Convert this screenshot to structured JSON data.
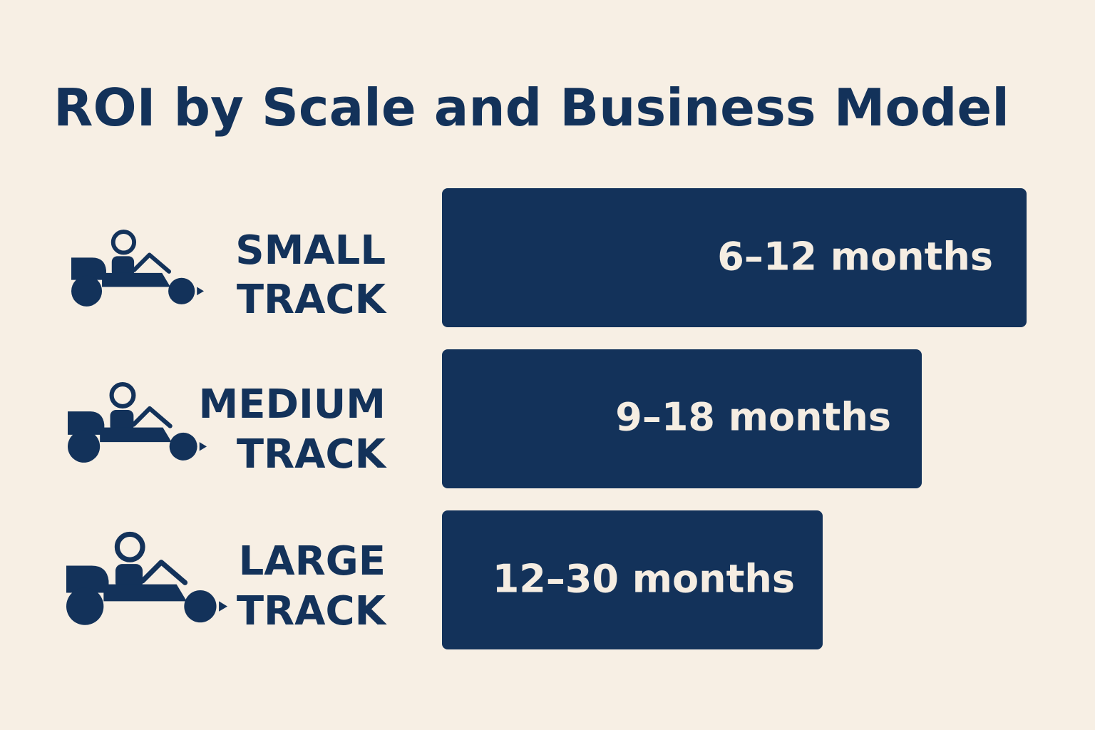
{
  "header": {
    "title": "ROI by Scale and Business Model"
  },
  "rows": [
    {
      "label": [
        "SMALL",
        "TRACK"
      ],
      "value": "6–12 months"
    },
    {
      "label": [
        "MEDIUM",
        "TRACK"
      ],
      "value": "9–18 months"
    },
    {
      "label": [
        "LARGE",
        "TRACK"
      ],
      "value": "12–30 months"
    }
  ]
}
